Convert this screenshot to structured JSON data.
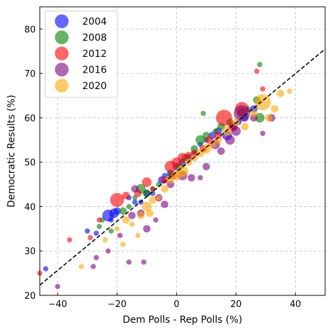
{
  "chart_data": {
    "type": "scatter",
    "title": "",
    "xlabel": "Dem Polls - Rep Polls (%)",
    "ylabel": "Democratic Results (%)",
    "xlim": [
      -46,
      50
    ],
    "ylim": [
      20,
      85
    ],
    "xticks": [
      -40,
      -20,
      0,
      20,
      40
    ],
    "xtick_labels": [
      "−40",
      "−20",
      "0",
      "20",
      "40"
    ],
    "yticks": [
      20,
      30,
      40,
      50,
      60,
      70,
      80
    ],
    "ytick_labels": [
      "20",
      "30",
      "40",
      "50",
      "60",
      "70",
      "80"
    ],
    "grid": true,
    "legend_position": "top-left",
    "fit_line": {
      "style": "dashed",
      "color": "#000000",
      "points": [
        [
          -46,
          22.3
        ],
        [
          50,
          75.5
        ]
      ]
    },
    "series": [
      {
        "name": "2004",
        "color": "#0000ff",
        "points": [
          [
            -44,
            26,
            2
          ],
          [
            -30,
            34.5,
            2
          ],
          [
            -27,
            34,
            2
          ],
          [
            -22,
            37,
            2
          ],
          [
            -23,
            38,
            5
          ],
          [
            -21,
            38.5,
            4
          ],
          [
            -20,
            39,
            3
          ],
          [
            -16,
            42,
            2
          ],
          [
            -14,
            41,
            2
          ],
          [
            -12,
            41,
            2
          ],
          [
            -10,
            43,
            3
          ],
          [
            -8,
            43,
            2
          ],
          [
            -5,
            46,
            3
          ],
          [
            -4,
            47,
            2
          ],
          [
            -2,
            47.5,
            3
          ],
          [
            0,
            49,
            3
          ],
          [
            2,
            50,
            3
          ],
          [
            4,
            51,
            3
          ],
          [
            6,
            52,
            2
          ],
          [
            8,
            54,
            2
          ],
          [
            10,
            55,
            2
          ],
          [
            12,
            56,
            3
          ],
          [
            14,
            57,
            3
          ],
          [
            17,
            56,
            4
          ],
          [
            19,
            58,
            3
          ],
          [
            21,
            59,
            2
          ],
          [
            23,
            60,
            3
          ],
          [
            26,
            62,
            3
          ]
        ]
      },
      {
        "name": "2008",
        "color": "#008000",
        "points": [
          [
            -26,
            35.5,
            2
          ],
          [
            -25,
            37,
            2
          ],
          [
            -22,
            34.5,
            2
          ],
          [
            -18,
            39,
            3
          ],
          [
            -16,
            40,
            2
          ],
          [
            -14,
            42,
            2
          ],
          [
            -12,
            44,
            4
          ],
          [
            -10,
            43,
            3
          ],
          [
            -8,
            44,
            2
          ],
          [
            -6,
            45,
            2
          ],
          [
            -2,
            47,
            3
          ],
          [
            1,
            49,
            3
          ],
          [
            3,
            51,
            3
          ],
          [
            6,
            53,
            3
          ],
          [
            8,
            55,
            4
          ],
          [
            10,
            56,
            3
          ],
          [
            13,
            57,
            2
          ],
          [
            15,
            58,
            3
          ],
          [
            18,
            59,
            3
          ],
          [
            22,
            61,
            4
          ],
          [
            24,
            62,
            2
          ],
          [
            27,
            64,
            3
          ],
          [
            28,
            60,
            4
          ],
          [
            9,
            61,
            2
          ],
          [
            28,
            72,
            2
          ]
        ]
      },
      {
        "name": "2012",
        "color": "#ff0000",
        "points": [
          [
            -46,
            25,
            2
          ],
          [
            -36,
            32.5,
            2
          ],
          [
            -29,
            33,
            2
          ],
          [
            -26,
            37,
            2
          ],
          [
            -20,
            41.5,
            6
          ],
          [
            -17,
            42.5,
            3
          ],
          [
            -13,
            43,
            3
          ],
          [
            -10,
            45.5,
            4
          ],
          [
            -8,
            44,
            2
          ],
          [
            -4,
            46,
            3
          ],
          [
            -2,
            49,
            5
          ],
          [
            0,
            50,
            4
          ],
          [
            2,
            51,
            4
          ],
          [
            4,
            51.5,
            3
          ],
          [
            6,
            52,
            3
          ],
          [
            9,
            53,
            3
          ],
          [
            11,
            55,
            3
          ],
          [
            14,
            56,
            3
          ],
          [
            16,
            60,
            7
          ],
          [
            19,
            58,
            4
          ],
          [
            22,
            62,
            6
          ],
          [
            27,
            70.5,
            2
          ],
          [
            29,
            66.5,
            2
          ],
          [
            -1,
            47,
            3
          ]
        ]
      },
      {
        "name": "2016",
        "color": "#800080",
        "points": [
          [
            -40,
            22,
            2
          ],
          [
            -27,
            28.5,
            2
          ],
          [
            -28,
            26.5,
            2
          ],
          [
            -23,
            30,
            2
          ],
          [
            -19,
            33.5,
            2
          ],
          [
            -16,
            27.5,
            2
          ],
          [
            -11,
            27.5,
            2
          ],
          [
            -10,
            35,
            3
          ],
          [
            -12,
            38.5,
            3
          ],
          [
            -15,
            38,
            3
          ],
          [
            -7,
            37,
            2
          ],
          [
            -4,
            40.5,
            3
          ],
          [
            -6,
            42,
            3
          ],
          [
            -2,
            45,
            3
          ],
          [
            2,
            47,
            4
          ],
          [
            5,
            46.5,
            3
          ],
          [
            8,
            46.5,
            2
          ],
          [
            10,
            49,
            3
          ],
          [
            13,
            54,
            4
          ],
          [
            15,
            52.5,
            3
          ],
          [
            18,
            55,
            4
          ],
          [
            20,
            57,
            4
          ],
          [
            22,
            61,
            7
          ],
          [
            26,
            60,
            3
          ],
          [
            29,
            56.5,
            2
          ],
          [
            32,
            60,
            3
          ],
          [
            -14,
            44,
            3
          ]
        ]
      },
      {
        "name": "2020",
        "color": "#ffa500",
        "points": [
          [
            -32,
            26.5,
            2
          ],
          [
            -24,
            32.5,
            2
          ],
          [
            -20,
            35,
            2
          ],
          [
            -17,
            37,
            3
          ],
          [
            -15,
            36,
            2
          ],
          [
            -12,
            38,
            3
          ],
          [
            -10,
            40,
            4
          ],
          [
            -8,
            41.5,
            3
          ],
          [
            -6,
            42,
            2
          ],
          [
            -4,
            44,
            3
          ],
          [
            -2,
            46,
            3
          ],
          [
            0,
            47,
            4
          ],
          [
            2,
            48,
            5
          ],
          [
            4,
            50,
            3
          ],
          [
            6,
            51,
            3
          ],
          [
            8,
            52,
            3
          ],
          [
            10,
            53,
            4
          ],
          [
            12,
            54,
            3
          ],
          [
            14,
            55,
            3
          ],
          [
            17,
            57,
            4
          ],
          [
            20,
            59,
            3
          ],
          [
            23,
            58,
            3
          ],
          [
            26,
            61,
            3
          ],
          [
            29,
            63.5,
            7
          ],
          [
            31,
            60,
            3
          ],
          [
            33,
            62,
            3
          ],
          [
            35,
            65.5,
            3
          ],
          [
            38,
            66,
            2
          ],
          [
            -18,
            31.5,
            2
          ],
          [
            -13,
            33.5,
            2
          ],
          [
            -9,
            38.5,
            3
          ]
        ]
      }
    ]
  }
}
